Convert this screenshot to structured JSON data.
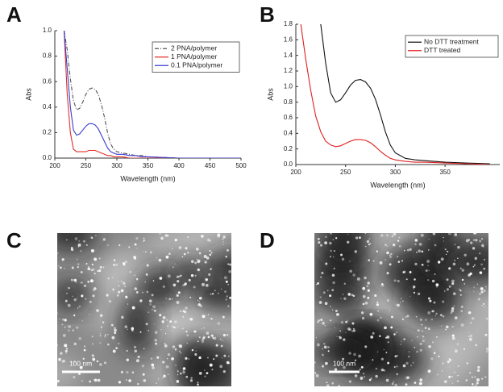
{
  "chart_data": [
    {
      "type": "line",
      "x_label": "Wavelength (nm)",
      "y_label": "Abs",
      "x": [
        215,
        220,
        225,
        230,
        235,
        240,
        245,
        250,
        255,
        260,
        265,
        270,
        275,
        280,
        285,
        290,
        295,
        300,
        310,
        320,
        330,
        340,
        350,
        400,
        450,
        500
      ],
      "series": [
        {
          "name": "2 PNA/polymer",
          "color": "#555555",
          "style": "dashed",
          "values": [
            1.0,
            0.85,
            0.62,
            0.45,
            0.38,
            0.39,
            0.44,
            0.5,
            0.54,
            0.55,
            0.54,
            0.5,
            0.42,
            0.32,
            0.2,
            0.11,
            0.07,
            0.05,
            0.04,
            0.03,
            0.02,
            0.02,
            0.01,
            0.0,
            0.0,
            0.0
          ]
        },
        {
          "name": "1 PNA/polymer",
          "color": "#e0302a",
          "style": "solid",
          "values": [
            1.0,
            0.5,
            0.2,
            0.07,
            0.05,
            0.05,
            0.05,
            0.05,
            0.06,
            0.06,
            0.06,
            0.05,
            0.04,
            0.03,
            0.02,
            0.02,
            0.01,
            0.01,
            0.01,
            0.0,
            0.0,
            0.0,
            0.0,
            0.0,
            0.0,
            0.0
          ]
        },
        {
          "name": "0.1 PNA/polymer",
          "color": "#3a3ad0",
          "style": "solid",
          "values": [
            1.0,
            0.7,
            0.4,
            0.22,
            0.18,
            0.19,
            0.22,
            0.25,
            0.27,
            0.27,
            0.26,
            0.23,
            0.18,
            0.13,
            0.08,
            0.05,
            0.04,
            0.03,
            0.03,
            0.02,
            0.02,
            0.01,
            0.01,
            0.0,
            0.0,
            0.0
          ]
        }
      ],
      "xlim": [
        200,
        500
      ],
      "xticks": [
        200,
        250,
        300,
        350,
        400,
        450,
        500
      ],
      "ylim": [
        0,
        1
      ],
      "yticks": [
        {
          "value": 0,
          "label": "0.0"
        },
        0.2,
        0.4,
        0.6,
        0.8,
        {
          "value": 1,
          "label": "1.0"
        }
      ],
      "legend": "upper right"
    },
    {
      "type": "line",
      "x_label": "Wavelength (nm)",
      "y_label": "Abs",
      "x": [
        205,
        210,
        215,
        220,
        225,
        230,
        235,
        240,
        245,
        250,
        255,
        260,
        265,
        270,
        275,
        280,
        285,
        290,
        295,
        300,
        310,
        320,
        330,
        350,
        370,
        395
      ],
      "series": [
        {
          "name": "No DTT treatment",
          "color": "#111111",
          "style": "solid",
          "values": [
            null,
            null,
            null,
            null,
            1.8,
            1.3,
            0.92,
            0.8,
            0.83,
            0.92,
            1.02,
            1.08,
            1.09,
            1.06,
            0.98,
            0.84,
            0.64,
            0.42,
            0.25,
            0.15,
            0.08,
            0.06,
            0.05,
            0.03,
            0.02,
            0.01
          ]
        },
        {
          "name": "DTT treated",
          "color": "#e02020",
          "style": "solid",
          "values": [
            1.8,
            1.35,
            0.95,
            0.62,
            0.42,
            0.3,
            0.25,
            0.23,
            0.24,
            0.27,
            0.3,
            0.32,
            0.32,
            0.31,
            0.28,
            0.23,
            0.17,
            0.12,
            0.08,
            0.06,
            0.04,
            0.03,
            0.03,
            0.02,
            0.01,
            0.0
          ]
        }
      ],
      "xlim": [
        200,
        405
      ],
      "xticks": [
        200,
        250,
        300,
        350
      ],
      "ylim": [
        0,
        1.8
      ],
      "yticks": [
        {
          "value": 0,
          "label": "0.0"
        },
        0.2,
        0.4,
        0.6,
        0.8,
        {
          "value": 1,
          "label": "1.0"
        },
        1.2,
        1.4,
        1.6,
        1.8
      ],
      "legend": "upper right"
    }
  ],
  "panels": [
    "A",
    "B",
    "C",
    "D"
  ],
  "images": [
    {
      "scale_bar": "100 nm"
    },
    {
      "scale_bar": "100 nm"
    }
  ]
}
